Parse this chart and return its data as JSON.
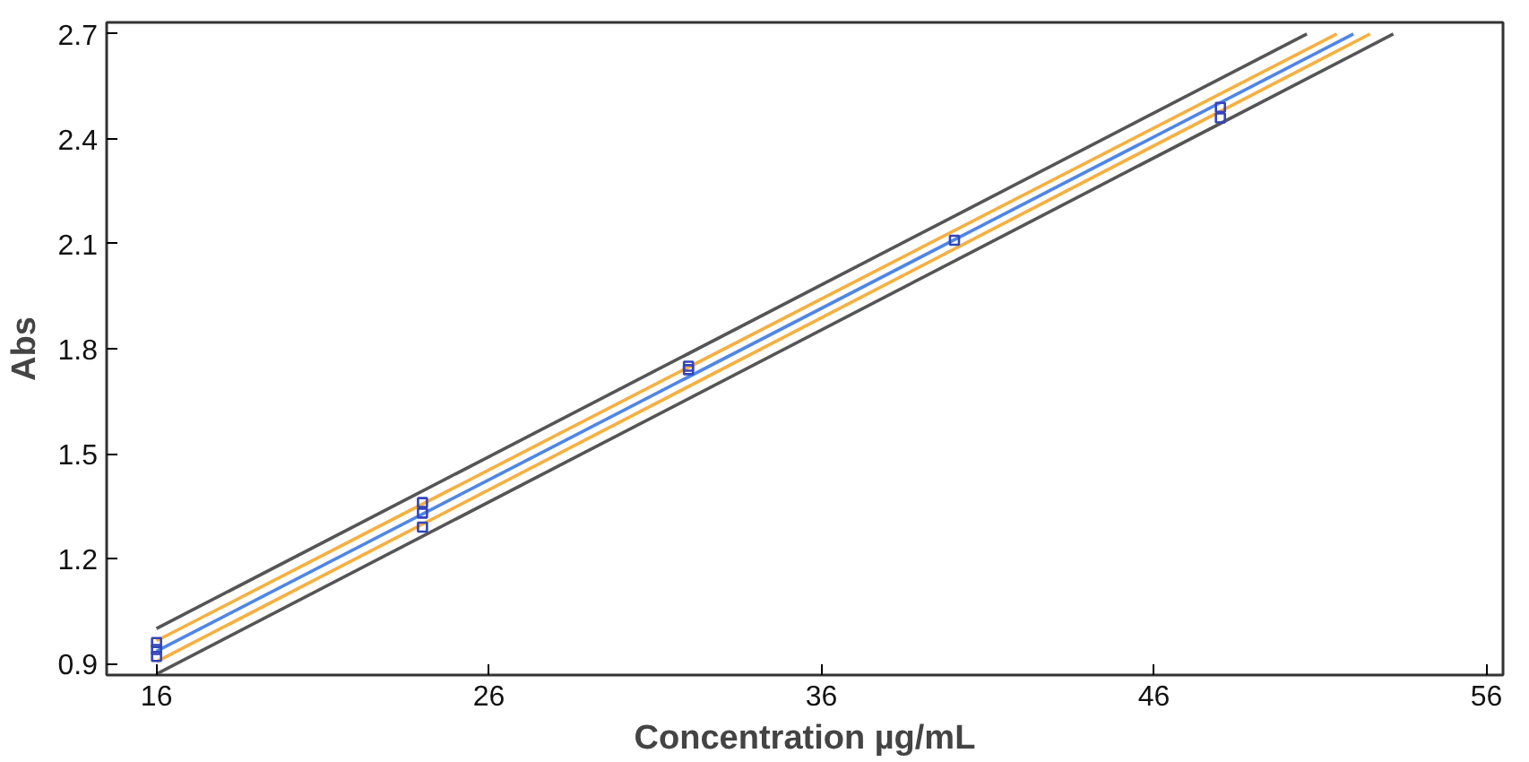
{
  "chart_data": {
    "type": "scatter",
    "xlabel": "Concentration µg/mL",
    "ylabel": "Abs",
    "xlim": [
      14.5,
      56.5
    ],
    "ylim": [
      0.867,
      2.733
    ],
    "xticks": [
      16,
      26,
      36,
      46,
      56
    ],
    "yticks": [
      0.9,
      1.2,
      1.5,
      1.8,
      2.1,
      2.4,
      2.7
    ],
    "grid": false,
    "series": [
      {
        "type": "line",
        "color": "#555555",
        "marker": "none",
        "x": [
          16,
          50.6
        ],
        "values": [
          1.0,
          2.7
        ]
      },
      {
        "type": "line",
        "color": "#555555",
        "marker": "none",
        "x": [
          16,
          53.2
        ],
        "values": [
          0.87,
          2.7
        ]
      },
      {
        "type": "line",
        "color": "#f5b041",
        "marker": "none",
        "x": [
          16,
          51.5
        ],
        "values": [
          0.965,
          2.7
        ]
      },
      {
        "type": "line",
        "color": "#f5b041",
        "marker": "none",
        "x": [
          16,
          52.5
        ],
        "values": [
          0.905,
          2.7
        ]
      },
      {
        "type": "line",
        "color": "#4f86e6",
        "marker": "none",
        "x": [
          16,
          52
        ],
        "values": [
          0.935,
          2.7
        ]
      },
      {
        "color": "#3344bb",
        "marker": "square",
        "x": [
          16,
          16,
          16,
          24,
          24,
          24,
          32,
          32,
          40,
          48,
          48
        ],
        "values": [
          0.92,
          0.94,
          0.96,
          1.29,
          1.33,
          1.36,
          1.74,
          1.75,
          2.11,
          2.46,
          2.49
        ]
      }
    ]
  }
}
